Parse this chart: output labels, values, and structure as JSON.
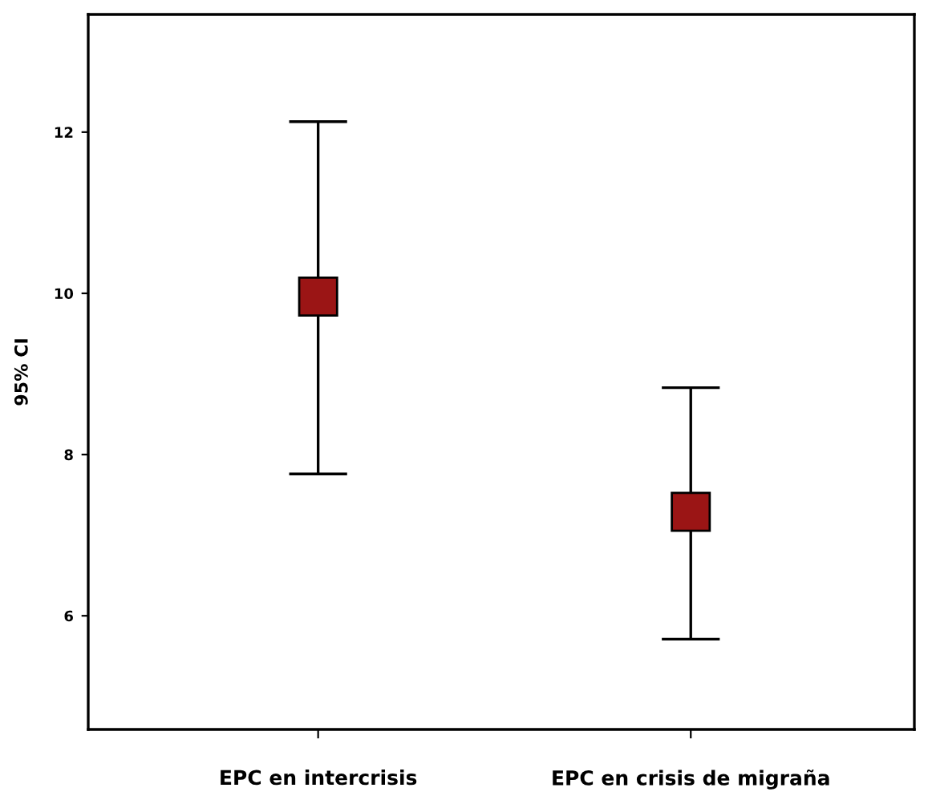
{
  "chart_data": {
    "type": "scatter",
    "ylabel": "95% CI",
    "categories": [
      "EPC en intercrisis",
      "EPC en crisis de migraña"
    ],
    "series": [
      {
        "color": "#9b1515",
        "values": [
          9.96,
          7.29
        ],
        "errors": [
          [
            7.76,
            12.13
          ],
          [
            5.71,
            8.83
          ]
        ]
      }
    ],
    "ylim": [
      4.59,
      13.46
    ],
    "yticks": [
      6,
      8,
      10,
      12
    ],
    "marker": "square",
    "grid": false,
    "legend": false
  }
}
